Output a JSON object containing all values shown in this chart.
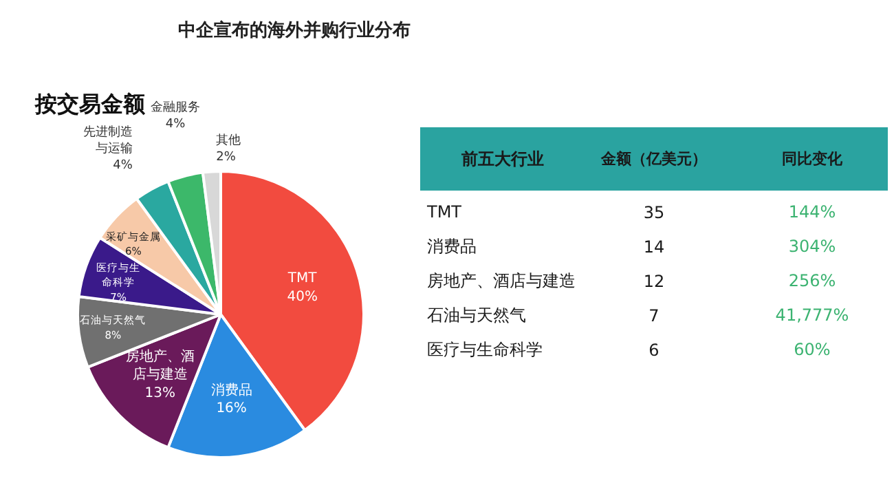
{
  "chart_data": [
    {
      "type": "pie",
      "title": "中企宣布的海外并购行业分布",
      "subtitle": "按交易金额",
      "categories": [
        "TMT",
        "消费品",
        "房地产、酒店与建造",
        "石油与天然气",
        "医疗与生命科学",
        "采矿与金属",
        "先进制造与运输",
        "金融服务",
        "其他"
      ],
      "values": [
        40,
        16,
        13,
        8,
        7,
        6,
        4,
        4,
        2
      ],
      "value_labels": [
        "40%",
        "16%",
        "13%",
        "8%",
        "7%",
        "6%",
        "4%",
        "4%",
        "2%"
      ],
      "colors": [
        "#f24b3f",
        "#2a8be0",
        "#6a1a5a",
        "#707070",
        "#3a1a8a",
        "#f7c9a8",
        "#2aa8a0",
        "#3cb86a",
        "#d8d8d8"
      ]
    },
    {
      "type": "other",
      "annotations": [
        "前五大行业",
        "金额（亿美元）",
        "同比变化",
        "TMT",
        "35",
        "144%",
        "消费品",
        "14",
        "304%",
        "房地产、酒店与建造",
        "12",
        "256%",
        "石油与天然气",
        "7",
        "41,777%",
        "医疗与生命科学",
        "6",
        "60%"
      ]
    }
  ]
}
